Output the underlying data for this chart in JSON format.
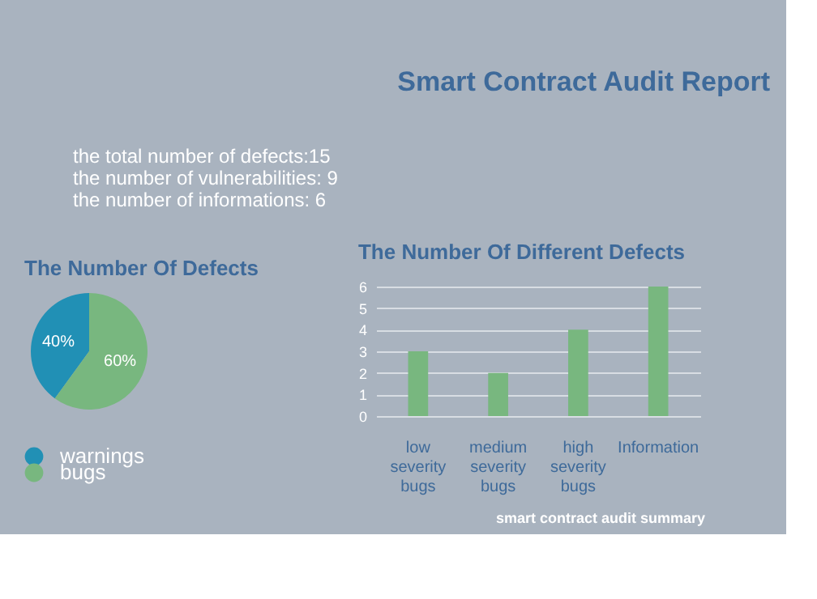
{
  "chart_data": [
    {
      "type": "other",
      "title": "Smart Contract Audit Report",
      "annotations": [
        "the total number of defects:15",
        "the number of vulnerabilities: 9",
        "the number of informations: 6"
      ]
    },
    {
      "type": "pie",
      "title": "The Number Of Defects",
      "categories": [
        "warnings",
        "bugs"
      ],
      "values": [
        40,
        60
      ],
      "colors": [
        "#2190b5",
        "#78b77f"
      ],
      "value_labels": [
        "40%",
        "60%"
      ],
      "legend": "bottom"
    },
    {
      "type": "bar",
      "title": "The Number Of Different Defects",
      "categories": [
        "low severity bugs",
        "medium severity bugs",
        "high severity bugs",
        "Information"
      ],
      "values": [
        3,
        2,
        4,
        6
      ],
      "color": "#78b77f",
      "ylim": [
        0,
        6
      ],
      "yticks": [
        0,
        1,
        2,
        3,
        4,
        5,
        6
      ],
      "grid": "y",
      "legend": false,
      "annotations": [
        "smart contract audit summary"
      ]
    }
  ]
}
